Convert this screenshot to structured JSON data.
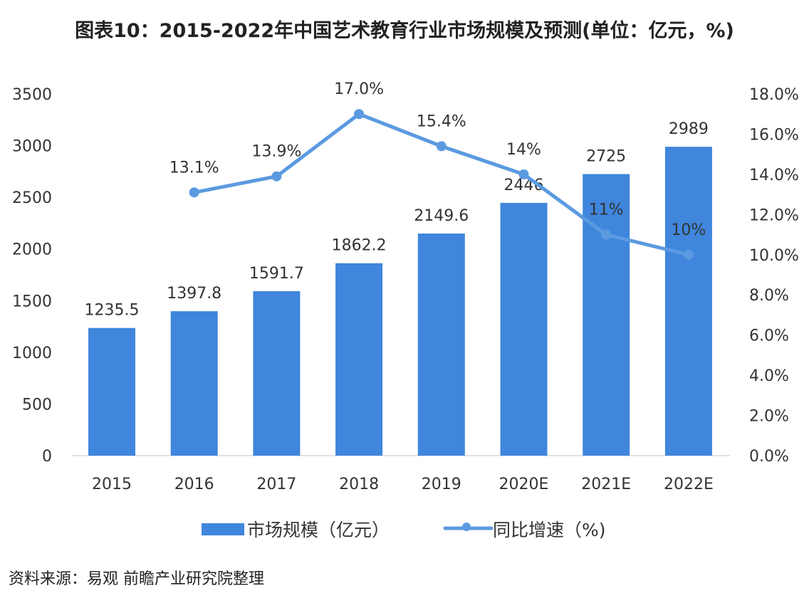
{
  "title": "图表10：2015-2022年中国艺术教育行业市场规模及预测(单位：亿元，%)",
  "source": "资料来源：易观 前瞻产业研究院整理",
  "colors": {
    "bar": "#3f86dc",
    "line": "#5b9ae0"
  },
  "chart_data": {
    "type": "bar+line",
    "categories": [
      "2015",
      "2016",
      "2017",
      "2018",
      "2019",
      "2020E",
      "2021E",
      "2022E"
    ],
    "series": [
      {
        "name": "市场规模（亿元）",
        "type": "bar",
        "axis": "left",
        "values": [
          1235.5,
          1397.8,
          1591.7,
          1862.2,
          2149.6,
          2446,
          2725,
          2989
        ],
        "labels": [
          "1235.5",
          "1397.8",
          "1591.7",
          "1862.2",
          "2149.6",
          "2446",
          "2725",
          "2989"
        ]
      },
      {
        "name": "同比增速（%)",
        "type": "line",
        "axis": "right",
        "values": [
          null,
          13.1,
          13.9,
          17.0,
          15.4,
          14,
          11,
          10
        ],
        "labels": [
          "",
          "13.1%",
          "13.9%",
          "17.0%",
          "15.4%",
          "14%",
          "11%",
          "10%"
        ]
      }
    ],
    "left_axis": {
      "ylim": [
        0,
        3500
      ],
      "ticks": [
        "0",
        "500",
        "1000",
        "1500",
        "2000",
        "2500",
        "3000",
        "3500"
      ]
    },
    "right_axis": {
      "ylim": [
        0,
        18
      ],
      "ticks": [
        "0.0%",
        "2.0%",
        "4.0%",
        "6.0%",
        "8.0%",
        "10.0%",
        "12.0%",
        "14.0%",
        "16.0%",
        "18.0%"
      ]
    },
    "grid": false,
    "legend_position": "bottom"
  }
}
